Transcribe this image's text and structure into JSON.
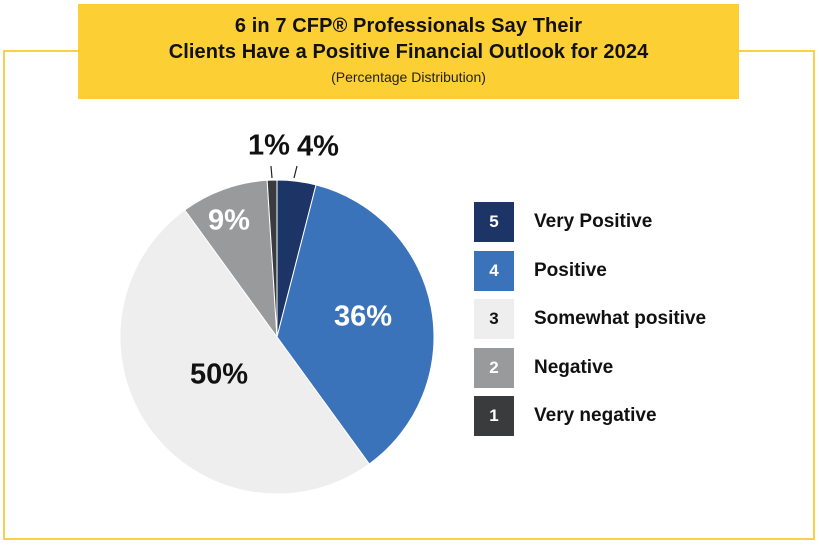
{
  "header": {
    "title_line1": "6 in 7 CFP® Professionals Say Their",
    "title_line2": "Clients Have a Positive Financial Outlook for 2024",
    "subtitle": "(Percentage Distribution)"
  },
  "colors": {
    "banner": "#fccf34",
    "frame": "#f5d24a",
    "very_positive": "#1c3566",
    "positive": "#3b73ba",
    "somewhat_positive": "#eeeeee",
    "negative": "#999a9c",
    "very_negative": "#3a3b3d"
  },
  "chart_data": {
    "type": "pie",
    "title": "6 in 7 CFP® Professionals Say Their Clients Have a Positive Financial Outlook for 2024",
    "subtitle": "(Percentage Distribution)",
    "legend_position": "right",
    "slices": [
      {
        "key": "5",
        "label": "Very Positive",
        "value": 4,
        "value_label": "4%",
        "color": "#1c3566",
        "label_color": "#111111",
        "outside": true,
        "swatch_text_color": "#ffffff"
      },
      {
        "key": "4",
        "label": "Positive",
        "value": 36,
        "value_label": "36%",
        "color": "#3b73ba",
        "label_color": "#ffffff",
        "outside": false,
        "swatch_text_color": "#ffffff"
      },
      {
        "key": "3",
        "label": "Somewhat positive",
        "value": 50,
        "value_label": "50%",
        "color": "#eeeeee",
        "label_color": "#111111",
        "outside": false,
        "swatch_text_color": "#111111"
      },
      {
        "key": "2",
        "label": "Negative",
        "value": 9,
        "value_label": "9%",
        "color": "#999a9c",
        "label_color": "#ffffff",
        "outside": false,
        "swatch_text_color": "#ffffff"
      },
      {
        "key": "1",
        "label": "Very negative",
        "value": 1,
        "value_label": "1%",
        "color": "#3a3b3d",
        "label_color": "#111111",
        "outside": true,
        "swatch_text_color": "#ffffff"
      }
    ]
  }
}
